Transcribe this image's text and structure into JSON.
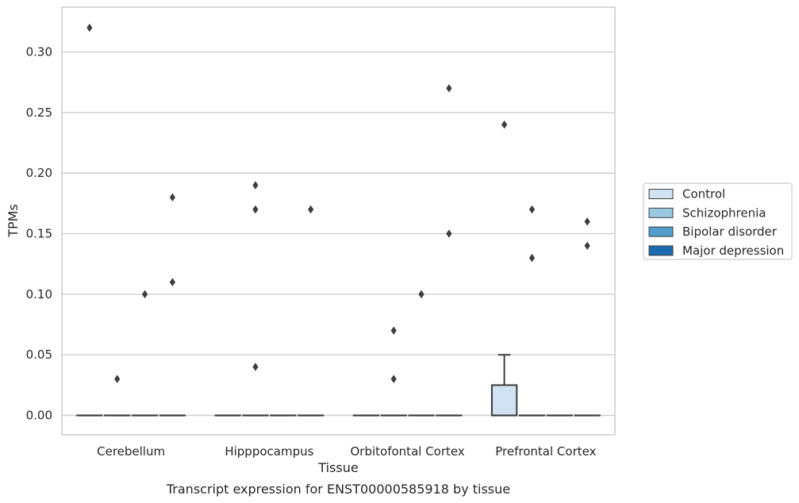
{
  "chart_data": {
    "type": "box",
    "title": "",
    "caption": "Transcript expression for ENST00000585918 by tissue",
    "xlabel": "Tissue",
    "ylabel": "TPMs",
    "ylim": [
      -0.016,
      0.337
    ],
    "yticks": [
      0.0,
      0.05,
      0.1,
      0.15,
      0.2,
      0.25,
      0.3
    ],
    "ytick_labels": [
      "0.00",
      "0.05",
      "0.10",
      "0.15",
      "0.20",
      "0.25",
      "0.30"
    ],
    "grid": true,
    "legend_position": "right",
    "categories": [
      "Cerebellum",
      "Hipppocampus",
      "Orbitofontal Cortex",
      "Prefrontal Cortex"
    ],
    "series": [
      {
        "name": "Control",
        "color": "#d1e2f2",
        "boxes": [
          {
            "q1": 0,
            "median": 0,
            "q3": 0,
            "whisker_low": 0,
            "whisker_high": 0,
            "outliers": [
              0.32
            ]
          },
          {
            "q1": 0,
            "median": 0,
            "q3": 0,
            "whisker_low": 0,
            "whisker_high": 0,
            "outliers": []
          },
          {
            "q1": 0,
            "median": 0,
            "q3": 0,
            "whisker_low": 0,
            "whisker_high": 0,
            "outliers": []
          },
          {
            "q1": 0,
            "median": 0,
            "q3": 0.025,
            "whisker_low": 0,
            "whisker_high": 0.05,
            "outliers": [
              0.24
            ]
          }
        ]
      },
      {
        "name": "Schizophrenia",
        "color": "#9ac8e0",
        "boxes": [
          {
            "q1": 0,
            "median": 0,
            "q3": 0,
            "whisker_low": 0,
            "whisker_high": 0,
            "outliers": [
              0.03
            ]
          },
          {
            "q1": 0,
            "median": 0,
            "q3": 0,
            "whisker_low": 0,
            "whisker_high": 0,
            "outliers": [
              0.04,
              0.17,
              0.19
            ]
          },
          {
            "q1": 0,
            "median": 0,
            "q3": 0,
            "whisker_low": 0,
            "whisker_high": 0,
            "outliers": [
              0.03,
              0.07
            ]
          },
          {
            "q1": 0,
            "median": 0,
            "q3": 0,
            "whisker_low": 0,
            "whisker_high": 0,
            "outliers": [
              0.13,
              0.17
            ]
          }
        ]
      },
      {
        "name": "Bipolar disorder",
        "color": "#529dcc",
        "boxes": [
          {
            "q1": 0,
            "median": 0,
            "q3": 0,
            "whisker_low": 0,
            "whisker_high": 0,
            "outliers": [
              0.1
            ]
          },
          {
            "q1": 0,
            "median": 0,
            "q3": 0,
            "whisker_low": 0,
            "whisker_high": 0,
            "outliers": []
          },
          {
            "q1": 0,
            "median": 0,
            "q3": 0,
            "whisker_low": 0,
            "whisker_high": 0,
            "outliers": [
              0.1
            ]
          },
          {
            "q1": 0,
            "median": 0,
            "q3": 0,
            "whisker_low": 0,
            "whisker_high": 0,
            "outliers": []
          }
        ]
      },
      {
        "name": "Major depression",
        "color": "#1c6aaf",
        "boxes": [
          {
            "q1": 0,
            "median": 0,
            "q3": 0,
            "whisker_low": 0,
            "whisker_high": 0,
            "outliers": [
              0.11,
              0.18
            ]
          },
          {
            "q1": 0,
            "median": 0,
            "q3": 0,
            "whisker_low": 0,
            "whisker_high": 0,
            "outliers": [
              0.17
            ]
          },
          {
            "q1": 0,
            "median": 0,
            "q3": 0,
            "whisker_low": 0,
            "whisker_high": 0,
            "outliers": [
              0.15,
              0.27
            ]
          },
          {
            "q1": 0,
            "median": 0,
            "q3": 0,
            "whisker_low": 0,
            "whisker_high": 0,
            "outliers": [
              0.14,
              0.16
            ]
          }
        ]
      }
    ]
  }
}
